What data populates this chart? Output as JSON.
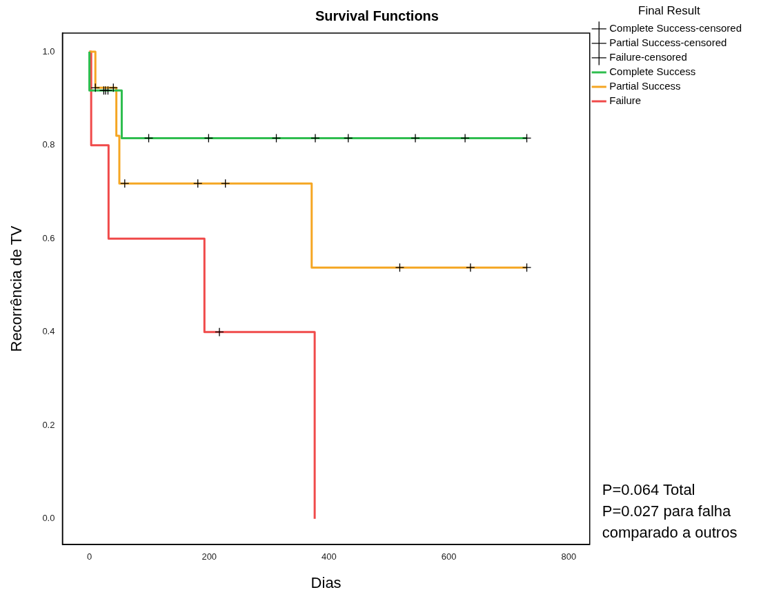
{
  "chart_data": {
    "type": "step",
    "title": "Survival Functions",
    "xlabel": "Dias",
    "ylabel": "Recorrência de TV",
    "legend_title": "Final Result",
    "legend": "top right",
    "grid": false,
    "xlim": [
      -45,
      835
    ],
    "xticks": [
      0,
      200,
      400,
      600,
      800
    ],
    "ylim": [
      -0.055,
      1.04
    ],
    "yticks": [
      {
        "value": 0,
        "label": "0.0"
      },
      0.2,
      0.4,
      0.6,
      0.8,
      {
        "value": 1,
        "label": "1.0"
      }
    ],
    "series": [
      {
        "name": "Complete Success",
        "color": "#2ebd4e",
        "x": [
          0,
          0,
          54,
          730
        ],
        "values": [
          1,
          0.917,
          0.815,
          0.815
        ]
      },
      {
        "name": "Partial Success",
        "color": "#f5a623",
        "x": [
          0,
          10,
          45,
          50,
          371,
          730
        ],
        "values": [
          1,
          0.923,
          0.82,
          0.718,
          0.538,
          0.538
        ]
      },
      {
        "name": "Failure",
        "color": "#f04a4a",
        "x": [
          0,
          3,
          32,
          192,
          376
        ],
        "values": [
          1,
          0.8,
          0.6,
          0.4,
          0
        ]
      },
      {
        "name": "Complete Success-censored",
        "type": "scatter",
        "marker": "cross",
        "color": "#000000",
        "x": [
          24,
          27,
          31,
          99,
          199,
          312,
          377,
          432,
          544,
          627,
          730
        ],
        "values": [
          0.917,
          0.917,
          0.917,
          0.815,
          0.815,
          0.815,
          0.815,
          0.815,
          0.815,
          0.815,
          0.815
        ]
      },
      {
        "name": "Partial Success-censored",
        "type": "scatter",
        "marker": "cross",
        "color": "#000000",
        "x": [
          10,
          40,
          59,
          181,
          227,
          518,
          636,
          730
        ],
        "values": [
          0.923,
          0.923,
          0.718,
          0.718,
          0.718,
          0.538,
          0.538,
          0.538
        ]
      },
      {
        "name": "Failure-censored",
        "type": "scatter",
        "marker": "cross",
        "color": "#000000",
        "x": [
          217
        ],
        "values": [
          0.4
        ]
      }
    ],
    "annotations": [
      "P=0.064 Total",
      "P=0.027 para falha",
      "comparado a outros"
    ]
  }
}
